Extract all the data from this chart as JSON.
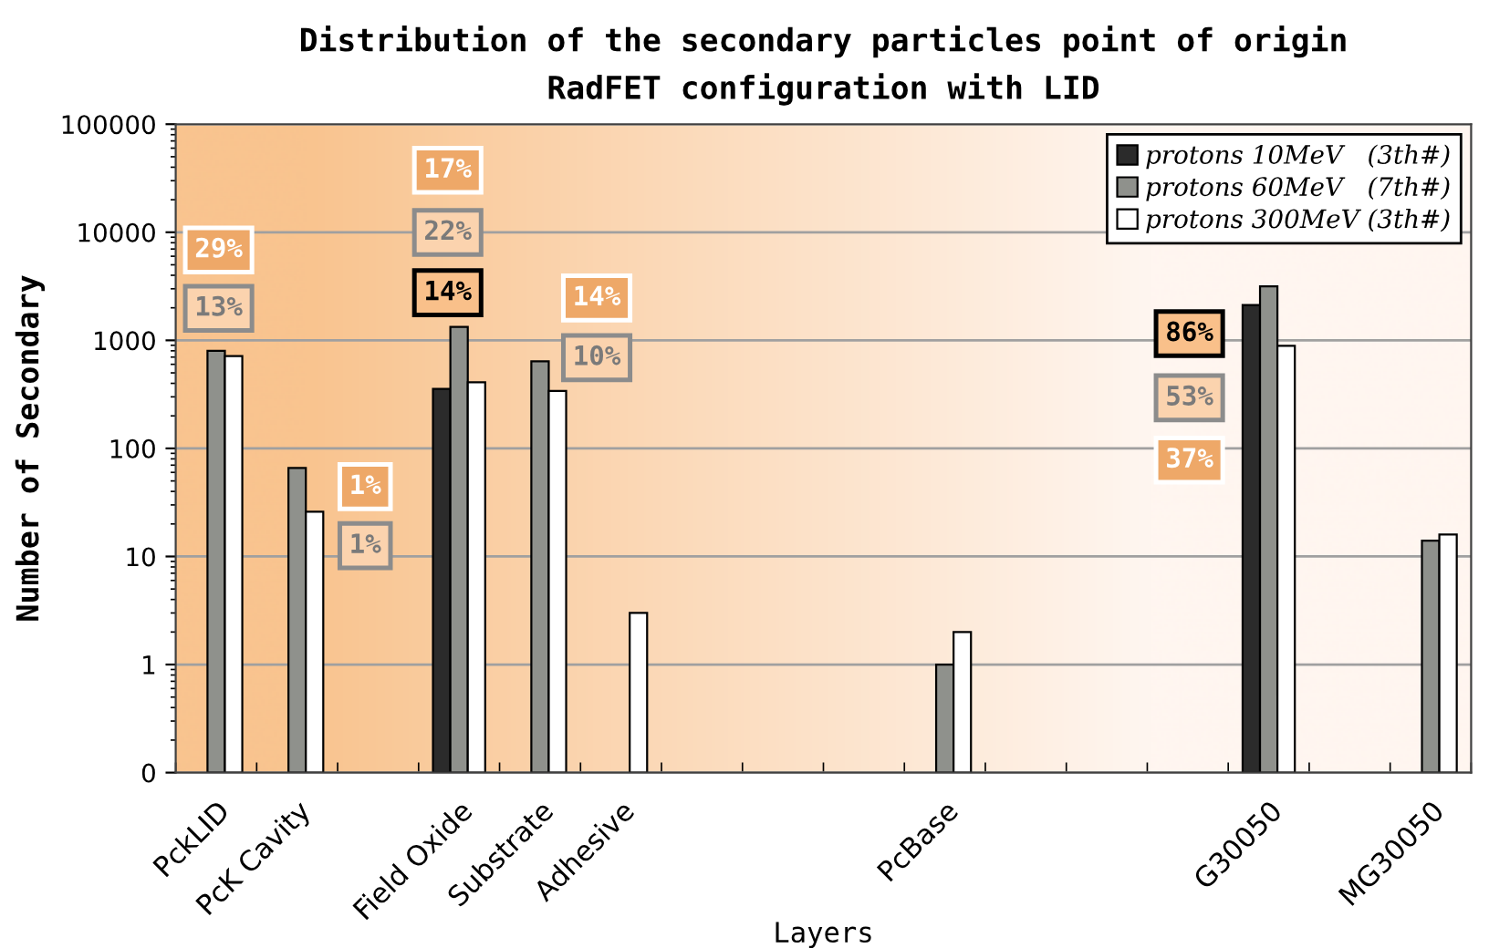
{
  "chart_data": {
    "type": "bar",
    "title": "Distribution of the secondary particles point of origin\nRadFET configuration with LID",
    "xlabel": "Layers",
    "ylabel": "Number of Secondary",
    "categories": [
      "PckLID",
      "PcK Cavity",
      null,
      "Field Oxide",
      "Substrate",
      "Adhesive",
      null,
      null,
      null,
      "PcBase",
      null,
      null,
      null,
      "G30050",
      null,
      "MG30050"
    ],
    "series": [
      {
        "name": "protons 10MeV   (3th#)",
        "color": "#2b2b2b",
        "values": [
          null,
          null,
          null,
          355,
          null,
          null,
          null,
          null,
          null,
          null,
          null,
          null,
          null,
          2120,
          null,
          null
        ]
      },
      {
        "name": "protons 60MeV   (7th#)",
        "color": "#8f918c",
        "values": [
          800,
          66,
          null,
          1330,
          640,
          null,
          null,
          null,
          null,
          1,
          null,
          null,
          null,
          3160,
          null,
          14
        ]
      },
      {
        "name": "protons 300MeV (3th#)",
        "color": "#ffffff",
        "values": [
          715,
          26,
          null,
          410,
          340,
          3,
          null,
          null,
          null,
          2,
          null,
          null,
          null,
          890,
          null,
          16
        ]
      }
    ],
    "log": true,
    "ylim": [
      0.1,
      100000
    ],
    "yticks": [
      {
        "value": 0.1,
        "label": "0"
      },
      1,
      10,
      100,
      1000,
      10000,
      100000
    ],
    "grid": "y",
    "legend": "top right",
    "annotations": [
      "29%",
      "13%",
      "1%",
      "1%",
      "17%",
      "22%",
      "14%",
      "14%",
      "10%",
      "86%",
      "53%",
      "37%"
    ]
  }
}
